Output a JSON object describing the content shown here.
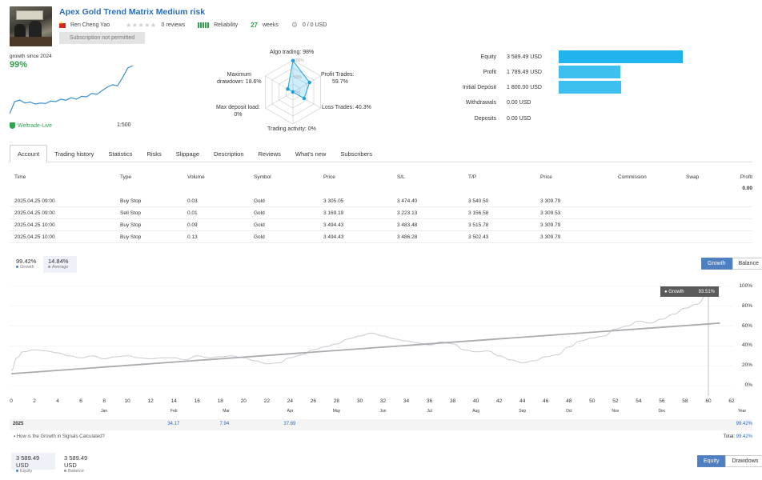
{
  "header": {
    "title": "Apex Gold Trend Matrix Medium risk",
    "author": "Ren Cheng Yao",
    "reviews": "0 reviews",
    "reliability": "Reliability",
    "weeks_num": "27",
    "weeks_label": "weeks",
    "subscribers": "0 / 0 USD",
    "subscribe_label": "Subscription not permitted"
  },
  "summary": {
    "growth_since": "growth since 2024",
    "growth_value": "99%",
    "broker": "Weltrade-Live",
    "leverage": "1:500",
    "sparkline": [
      0.0,
      0.25,
      0.28,
      0.22,
      0.24,
      0.2,
      0.22,
      0.21,
      0.26,
      0.25,
      0.3,
      0.28,
      0.33,
      0.3,
      0.36,
      0.35,
      0.42,
      0.4,
      0.48,
      0.55,
      0.6,
      0.58,
      0.75,
      0.95,
      1.0
    ]
  },
  "radar": {
    "algo": "Algo trading: 98%",
    "profit_trades_1": "Profit Trades:",
    "profit_trades_2": "59.7%",
    "loss_trades": "Loss Trades: 40.3%",
    "activity": "Trading activity: 0%",
    "deposit_load_1": "Max deposit load:",
    "deposit_load_2": "0%",
    "drawdown_1": "Maximum",
    "drawdown_2": "drawdown: 18.6%",
    "ring_100": "100%",
    "ring_50": "50%",
    "ring_0": "0%",
    "values": {
      "algo": 98,
      "profit": 59.7,
      "loss": 40.3,
      "activity": 0,
      "load": 0,
      "drawdown": 18.6
    }
  },
  "balances": [
    {
      "label": "Equity",
      "value": "3 589.49 USD",
      "fill": 1.0
    },
    {
      "label": "Profit",
      "value": "1 789.49 USD",
      "fill": 0.498
    },
    {
      "label": "Initial Deposit",
      "value": "1 800.00 USD",
      "fill": 0.501
    },
    {
      "label": "Withdrawals",
      "value": "0.00 USD",
      "fill": 0
    },
    {
      "label": "Deposits",
      "value": "0.00 USD",
      "fill": 0
    }
  ],
  "tabs": [
    "Account",
    "Trading history",
    "Statistics",
    "Risks",
    "Slippage",
    "Description",
    "Reviews",
    "What's new",
    "Subscribers"
  ],
  "orders": {
    "headers": [
      "Time",
      "Type",
      "Volume",
      "Symbol",
      "Price",
      "S/L",
      "T/P",
      "Price",
      "Commission",
      "Swap",
      "Profit"
    ],
    "profit_total": "0.00",
    "rows": [
      [
        "2025.04.25 09:00",
        "Buy Stop",
        "0.03",
        "Gold",
        "3 305.05",
        "3 474.40",
        "3 540.50",
        "3 309.79"
      ],
      [
        "2025.04.25 09:00",
        "Sell Stop",
        "0.01",
        "Gold",
        "3 169.19",
        "3 223.13",
        "3 156.58",
        "3 309.53"
      ],
      [
        "2025.04.25 10:00",
        "Buy Stop",
        "0.09",
        "Gold",
        "3 494.43",
        "3 483.48",
        "3 515.78",
        "3 309.79"
      ],
      [
        "2025.04.25 10:00",
        "Buy Stop",
        "0.13",
        "Gold",
        "3 494.43",
        "3 486.28",
        "3 502.43",
        "3 309.79"
      ]
    ]
  },
  "growth_chart": {
    "growth_value": "99.42%",
    "growth_label": "Growth",
    "average_value": "14.84%",
    "average_label": "Average",
    "btn_growth": "Growth",
    "btn_balance": "Balance",
    "tooltip_label": "Growth",
    "tooltip_value": "93.51%",
    "colors": {
      "line": "#c9ccd2",
      "trend": "#a9abaf",
      "accent": "#4e7fc0"
    }
  },
  "chart_data": {
    "type": "line",
    "x_ticks": [
      "0",
      "2",
      "4",
      "6",
      "8",
      "10",
      "12",
      "14",
      "16",
      "18",
      "20",
      "22",
      "24",
      "26",
      "28",
      "30",
      "32",
      "34",
      "36",
      "38",
      "40",
      "42",
      "44",
      "46",
      "48",
      "50",
      "52",
      "54",
      "56",
      "58",
      "60",
      "62"
    ],
    "y_ticks": [
      "100%",
      "80%",
      "60%",
      "40%",
      "20%",
      "0%"
    ],
    "ylim": [
      0,
      100
    ],
    "xlim": [
      0,
      62
    ],
    "months": [
      "Jan",
      "Feb",
      "Mar",
      "Apr",
      "May",
      "Jun",
      "Jul",
      "Aug",
      "Sep",
      "Oct",
      "Nov",
      "Dec"
    ],
    "month_x": [
      8,
      14,
      18.5,
      24,
      28,
      32,
      36,
      40,
      44,
      48,
      52,
      56
    ],
    "year_axis_label": "Year",
    "series": [
      {
        "x": [
          0,
          0.5,
          1,
          2,
          3,
          4,
          5,
          6,
          7,
          8,
          9,
          10,
          11,
          12,
          13,
          14,
          15,
          16,
          17,
          18,
          19,
          20,
          21,
          22,
          23,
          24,
          25,
          26,
          27,
          28,
          29,
          30,
          31,
          32,
          33,
          34,
          35,
          36,
          37,
          38,
          39,
          40,
          41,
          42,
          43,
          44,
          45,
          46,
          47,
          48,
          49,
          50,
          51,
          52,
          53,
          54,
          55,
          56,
          57,
          58,
          59,
          60,
          61
        ],
        "y": [
          15,
          28,
          34,
          36,
          35,
          33,
          30,
          28,
          30,
          27,
          29,
          30,
          28,
          27,
          28,
          28,
          26,
          30,
          28,
          29,
          30,
          28,
          25,
          22,
          23,
          28,
          31,
          36,
          39,
          42,
          47,
          50,
          53,
          50,
          47,
          45,
          43,
          41,
          44,
          42,
          36,
          34,
          35,
          30,
          26,
          23,
          25,
          29,
          31,
          39,
          45,
          48,
          50,
          57,
          60,
          65,
          63,
          67,
          72,
          78,
          82,
          93.5,
          99.4
        ]
      },
      {
        "name": "trend",
        "x": [
          0,
          61
        ],
        "y": [
          12,
          63
        ]
      }
    ],
    "year_row": {
      "year": "2025",
      "values": [
        {
          "x": 14,
          "value": "34.17"
        },
        {
          "x": 18.5,
          "value": "7.94"
        },
        {
          "x": 24,
          "value": "37.69"
        }
      ],
      "total_value": "99.42%"
    },
    "footer_link": "How is the Growth in Signals Calculated?",
    "total_label": "Total:",
    "total_value": "99.42%"
  },
  "equity_footer": {
    "equity_value": "3 589.49 USD",
    "equity_label": "Equity",
    "balance_value": "3 589.49 USD",
    "balance_label": "Balance",
    "btn_equity": "Equity",
    "btn_drawdown": "Drawdown"
  }
}
